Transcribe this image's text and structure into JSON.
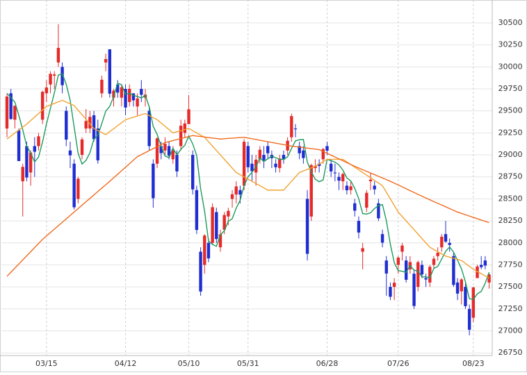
{
  "chart_data": {
    "type": "candlestick",
    "categories": [
      null,
      null,
      null,
      null,
      null,
      null,
      null,
      null,
      null,
      null,
      "03/15",
      null,
      null,
      null,
      null,
      null,
      null,
      null,
      null,
      null,
      null,
      null,
      null,
      null,
      null,
      null,
      null,
      null,
      null,
      null,
      "04/12",
      null,
      null,
      null,
      null,
      null,
      null,
      null,
      null,
      null,
      null,
      null,
      null,
      null,
      null,
      null,
      "05/10",
      null,
      null,
      null,
      null,
      null,
      null,
      null,
      null,
      null,
      null,
      null,
      null,
      null,
      null,
      "05/31",
      null,
      null,
      null,
      null,
      null,
      null,
      null,
      null,
      null,
      null,
      null,
      null,
      null,
      null,
      null,
      null,
      null,
      null,
      null,
      "06/28",
      null,
      null,
      null,
      null,
      null,
      null,
      null,
      null,
      null,
      null,
      null,
      null,
      null,
      null,
      null,
      null,
      null,
      "07/26",
      null,
      null,
      null,
      null,
      null,
      null,
      null,
      null,
      null,
      null,
      null,
      null,
      null,
      null,
      null,
      null,
      null,
      null,
      "08/23",
      null,
      null,
      null,
      null
    ],
    "open": [
      29300,
      29700,
      29400,
      29280,
      28700,
      29100,
      28800,
      29100,
      29100,
      29400,
      29700,
      29800,
      29900,
      30050,
      30000,
      29500,
      29050,
      28900,
      28500,
      29000,
      29300,
      29300,
      29450,
      29300,
      29700,
      30050,
      30200,
      29650,
      29800,
      29650,
      29750,
      29600,
      29700,
      29550,
      29750,
      29650,
      29500,
      28900,
      28900,
      29100,
      29050,
      29100,
      28950,
      29000,
      29100,
      29250,
      29350,
      29000,
      28600,
      27900,
      27750,
      28000,
      28000,
      28350,
      27950,
      28150,
      28300,
      28500,
      28550,
      28600,
      28650,
      29100,
      28900,
      28800,
      28950,
      29000,
      29100,
      29000,
      28900,
      28850,
      29000,
      29050,
      29200,
      29300,
      29100,
      29050,
      28500,
      28300,
      28850,
      28900,
      28950,
      29100,
      28900,
      28800,
      28750,
      28700,
      28650,
      28600,
      28450,
      28250,
      27900,
      28400,
      28700,
      28650,
      28450,
      28100,
      27800,
      27500,
      27500,
      27750,
      27900,
      27800,
      27700,
      27650,
      27500,
      27750,
      27600,
      27550,
      27750,
      27850,
      27950,
      28100,
      28000,
      27850,
      27550,
      27450,
      27500,
      27250,
      27150,
      27600,
      27750,
      27800,
      27550
    ],
    "high": [
      29690,
      29750,
      29560,
      29300,
      28900,
      29150,
      29050,
      29200,
      29250,
      29730,
      29850,
      29950,
      29950,
      30485,
      30050,
      29550,
      29150,
      28950,
      28750,
      29200,
      29520,
      29500,
      29500,
      29400,
      29900,
      30150,
      30200,
      29750,
      29850,
      29800,
      29800,
      29800,
      29700,
      29700,
      29850,
      29750,
      29550,
      28950,
      29200,
      29150,
      29200,
      29150,
      29100,
      29050,
      29400,
      29400,
      29680,
      29050,
      28650,
      27950,
      28100,
      28050,
      28450,
      28400,
      28150,
      28350,
      28400,
      28600,
      28700,
      28650,
      29180,
      29150,
      29000,
      29000,
      29100,
      29100,
      29150,
      29050,
      28950,
      29000,
      29050,
      29200,
      29470,
      29350,
      29150,
      29100,
      28600,
      28900,
      28950,
      28950,
      29080,
      29150,
      28950,
      28900,
      28800,
      28800,
      28700,
      28700,
      28500,
      28300,
      28000,
      28600,
      28800,
      28700,
      28500,
      28150,
      27850,
      27550,
      27600,
      27850,
      28000,
      27850,
      27850,
      27700,
      27800,
      27800,
      27650,
      27750,
      27850,
      27950,
      28100,
      28250,
      28050,
      27900,
      27600,
      27600,
      27550,
      27300,
      27500,
      27750,
      27850,
      27850,
      27650
    ],
    "low": [
      29200,
      29400,
      29300,
      28930,
      28300,
      28700,
      28650,
      28750,
      29050,
      29350,
      29600,
      29700,
      29750,
      30000,
      29700,
      29100,
      28850,
      28380,
      28450,
      28950,
      29250,
      29250,
      29150,
      28900,
      29650,
      29950,
      29650,
      29550,
      29650,
      29550,
      29450,
      29550,
      29550,
      29450,
      29600,
      29550,
      29050,
      28400,
      28850,
      28950,
      29000,
      28950,
      28900,
      28750,
      29050,
      29200,
      29350,
      28550,
      28100,
      27400,
      27650,
      27780,
      27980,
      28000,
      27900,
      28100,
      28200,
      28400,
      28450,
      28450,
      28600,
      28800,
      28700,
      28650,
      28900,
      28850,
      28950,
      28850,
      28800,
      28800,
      28900,
      29000,
      29150,
      29200,
      28950,
      28900,
      27800,
      28250,
      28800,
      28800,
      28900,
      29000,
      28750,
      28700,
      28600,
      28600,
      28550,
      28550,
      28300,
      28050,
      27700,
      28350,
      28600,
      28550,
      28250,
      27950,
      27400,
      27350,
      27350,
      27650,
      27800,
      27550,
      27650,
      27250,
      27450,
      27600,
      27500,
      27500,
      27700,
      27800,
      27900,
      28000,
      27900,
      27500,
      27350,
      27300,
      27250,
      26950,
      27100,
      27600,
      27700,
      27700,
      27480
    ],
    "close": [
      29663,
      29408,
      29559,
      28930,
      28864,
      28743,
      29027,
      29036,
      29211,
      29717,
      29766,
      29921,
      29914,
      30216,
      29792,
      29174,
      28995,
      28405,
      28729,
      29176,
      29384,
      29432,
      29178,
      28938,
      29854,
      30089,
      29696,
      29730,
      29708,
      29768,
      29538,
      29751,
      29620,
      29642,
      29683,
      29685,
      29100,
      28508,
      29188,
      29020,
      29126,
      28991,
      29053,
      28812,
      29331,
      29357,
      29518,
      28608,
      28147,
      27448,
      28084,
      27824,
      28406,
      28044,
      28098,
      28317,
      28364,
      28553,
      28642,
      28549,
      29149,
      28860,
      28814,
      28946,
      29058,
      28941,
      29019,
      28963,
      28860,
      28958,
      28948,
      29161,
      29441,
      29291,
      29018,
      28964,
      27876,
      28884,
      28874,
      28875,
      29066,
      29048,
      28812,
      28791,
      28707,
      28783,
      28598,
      28643,
      28366,
      28118,
      27940,
      28569,
      28718,
      28608,
      28279,
      28003,
      27652,
      27388,
      27548,
      27833,
      27970,
      27581,
      27782,
      27283,
      27781,
      27641,
      27584,
      27728,
      27820,
      27888,
      28070,
      28015,
      27977,
      27523,
      27424,
      27585,
      27281,
      27013,
      27494,
      27732,
      27724,
      27742,
      27641
    ],
    "up_color": "#e52a2a",
    "down_color": "#1f2ed0",
    "series": [
      {
        "type": "line",
        "color": "#1b9a5e",
        "values": [
          29700,
          29650,
          29600,
          29450,
          29285,
          29101,
          29025,
          28920,
          28976,
          29147,
          29351,
          29530,
          29706,
          29907,
          29922,
          29803,
          29618,
          29316,
          29019,
          28896,
          28938,
          29025,
          29180,
          29222,
          29357,
          29498,
          29551,
          29661,
          29815,
          29798,
          29688,
          29699,
          29677,
          29664,
          29647,
          29676,
          29546,
          29324,
          29233,
          29100,
          28988,
          28967,
          29076,
          29000,
          29063,
          29109,
          29214,
          29125,
          28992,
          28616,
          28361,
          28022,
          27982,
          27961,
          28091,
          28138,
          28246,
          28275,
          28395,
          28485,
          28651,
          28751,
          28803,
          28864,
          28965,
          28924,
          28956,
          28985,
          28968,
          28948,
          28950,
          28978,
          29074,
          29160,
          29172,
          29175,
          28918,
          28807,
          28723,
          28695,
          28715,
          28949,
          28935,
          28918,
          28885,
          28828,
          28738,
          28704,
          28619,
          28502,
          28333,
          28327,
          28342,
          28391,
          28423,
          28435,
          28252,
          27986,
          27774,
          27685,
          27678,
          27664,
          27743,
          27690,
          27679,
          27614,
          27614,
          27603,
          27711,
          27732,
          27818,
          27904,
          27954,
          27895,
          27802,
          27705,
          27558,
          27365,
          27359,
          27421,
          27449,
          27541,
          27667
        ]
      },
      {
        "type": "line",
        "color": "#f2a230",
        "values": [
          29180,
          29214,
          29248,
          29282,
          29316,
          29350,
          29390,
          29430,
          29470,
          29510,
          29550,
          29568,
          29585,
          29603,
          29620,
          29600,
          29580,
          29560,
          29508,
          29456,
          29404,
          29352,
          29300,
          29277,
          29253,
          29230,
          29264,
          29298,
          29332,
          29366,
          29400,
          29414,
          29428,
          29442,
          29456,
          29470,
          29447,
          29423,
          29400,
          29363,
          29325,
          29288,
          29250,
          29263,
          29275,
          29288,
          29300,
          29275,
          29250,
          29225,
          29200,
          29150,
          29100,
          29050,
          29000,
          28950,
          28900,
          28850,
          28800,
          28775,
          28750,
          28725,
          28700,
          28675,
          28650,
          28625,
          28600,
          28600,
          28600,
          28600,
          28600,
          28650,
          28700,
          28750,
          28800,
          28818,
          28835,
          28853,
          28870,
          28897,
          28923,
          28950,
          28950,
          28950,
          28950,
          28950,
          28920,
          28890,
          28860,
          28830,
          28800,
          28770,
          28740,
          28710,
          28680,
          28650,
          28575,
          28500,
          28425,
          28350,
          28300,
          28250,
          28200,
          28150,
          28100,
          28050,
          28000,
          27950,
          27925,
          27900,
          27875,
          27850,
          27838,
          27825,
          27813,
          27800,
          27767,
          27733,
          27700,
          27675,
          27650,
          27625,
          27600
        ]
      },
      {
        "type": "line",
        "color": "#f06a1e",
        "values": [
          27620,
          27667,
          27713,
          27760,
          27807,
          27853,
          27900,
          27947,
          27993,
          28040,
          28079,
          28118,
          28157,
          28196,
          28234,
          28273,
          28312,
          28351,
          28390,
          28429,
          28468,
          28506,
          28545,
          28584,
          28623,
          28661,
          28700,
          28740,
          28780,
          28820,
          28860,
          28900,
          28940,
          28980,
          29003,
          29026,
          29049,
          29071,
          29094,
          29117,
          29140,
          29151,
          29163,
          29174,
          29186,
          29197,
          29209,
          29220,
          29214,
          29209,
          29203,
          29197,
          29191,
          29186,
          29180,
          29183,
          29187,
          29190,
          29193,
          29197,
          29200,
          29192,
          29183,
          29175,
          29167,
          29158,
          29150,
          29142,
          29133,
          29125,
          29117,
          29108,
          29100,
          29094,
          29089,
          29083,
          29077,
          29071,
          29066,
          29060,
          29039,
          29018,
          28997,
          28976,
          28954,
          28933,
          28912,
          28891,
          28870,
          28851,
          28832,
          28813,
          28794,
          28776,
          28757,
          28738,
          28719,
          28700,
          28679,
          28658,
          28637,
          28616,
          28594,
          28573,
          28552,
          28531,
          28510,
          28490,
          28470,
          28450,
          28430,
          28410,
          28390,
          28370,
          28350,
          28335,
          28320,
          28305,
          28290,
          28275,
          28260,
          28245,
          28230
        ]
      }
    ],
    "ylim": [
      26720,
      30760
    ],
    "yticks": [
      26750,
      27000,
      27250,
      27500,
      27750,
      28000,
      28250,
      28500,
      28750,
      29000,
      29250,
      29500,
      29750,
      30000,
      30250,
      30500
    ],
    "grid": true
  }
}
